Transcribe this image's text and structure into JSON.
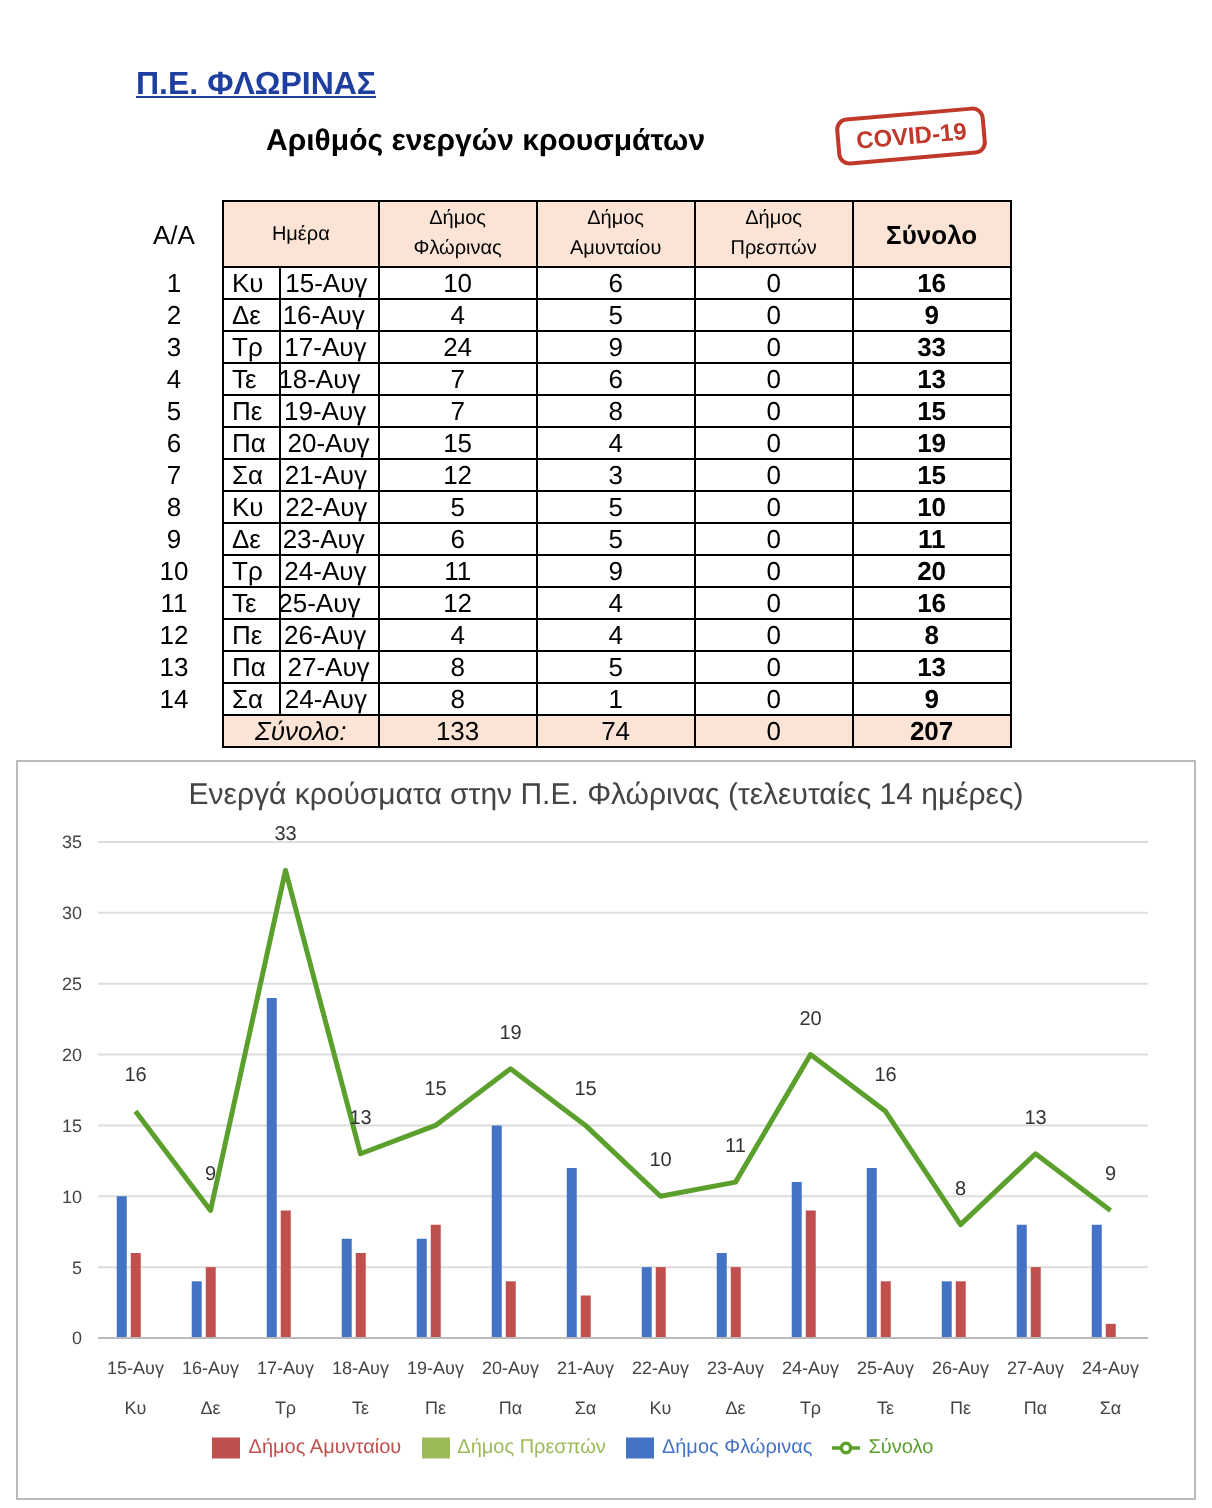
{
  "chart_data": [
    {
      "type": "other",
      "title": "Π.Ε. ΦΛΩΡΙΝΑΣ",
      "subtitle": "Αριθμός ενεργών κρουσμάτων",
      "xlabel": "Ημέρα",
      "annotations": [
        "COVID-19",
        "Σύνολο:"
      ],
      "categories": [
        "Κυ\n15-Αυγ",
        "Δε\n16-Αυγ",
        "Τρ\n17-Αυγ",
        "Τε\n18-Αυγ",
        "Πε\n19-Αυγ",
        "Πα\n20-Αυγ",
        "Σα\n21-Αυγ",
        "Κυ\n22-Αυγ",
        "Δε\n23-Αυγ",
        "Τρ\n24-Αυγ",
        "Τε\n25-Αυγ",
        "Πε\n26-Αυγ",
        "Πα\n27-Αυγ",
        "Σα\n24-Αυγ"
      ],
      "series": [
        {
          "name": "A/A",
          "values": [
            1,
            2,
            3,
            4,
            5,
            6,
            7,
            8,
            9,
            10,
            11,
            12,
            13,
            14
          ]
        },
        {
          "name": "Δήμος Φλώρινας",
          "values": [
            10,
            4,
            24,
            7,
            7,
            15,
            12,
            5,
            6,
            11,
            12,
            4,
            8,
            8
          ]
        },
        {
          "name": "Δήμος Αμυνταίου",
          "values": [
            6,
            5,
            9,
            6,
            8,
            4,
            3,
            5,
            5,
            9,
            4,
            4,
            5,
            1
          ]
        },
        {
          "name": "Δήμος Πρεσπών",
          "values": [
            0,
            0,
            0,
            0,
            0,
            0,
            0,
            0,
            0,
            0,
            0,
            0,
            0,
            0
          ]
        },
        {
          "name": "Σύνολο",
          "values": [
            16,
            9,
            33,
            13,
            15,
            19,
            15,
            10,
            11,
            20,
            16,
            8,
            13,
            9
          ]
        }
      ],
      "totals": [
        "133",
        "74",
        "0",
        "207"
      ],
      "data_labels": true
    },
    {
      "type": "bar",
      "title": "Ενεργά κρούσματα στην Π.Ε. Φλώρινας (τελευταίες 14 ημέρες)",
      "categories": [
        "15-Αυγ\nΚυ",
        "16-Αυγ\nΔε",
        "17-Αυγ\nΤρ",
        "18-Αυγ\nΤε",
        "19-Αυγ\nΠε",
        "20-Αυγ\nΠα",
        "21-Αυγ\nΣα",
        "22-Αυγ\nΚυ",
        "23-Αυγ\nΔε",
        "24-Αυγ\nΤρ",
        "25-Αυγ\nΤε",
        "26-Αυγ\nΠε",
        "27-Αυγ\nΠα",
        "24-Αυγ\nΣα"
      ],
      "series": [
        {
          "name": "Δήμος Φλώρινας",
          "color": "#4472c4",
          "values": [
            10,
            4,
            24,
            7,
            7,
            15,
            12,
            5,
            6,
            11,
            12,
            4,
            8,
            8
          ]
        },
        {
          "name": "Δήμος Αμυνταίου",
          "color": "#c0504d",
          "values": [
            6,
            5,
            9,
            6,
            8,
            4,
            3,
            5,
            5,
            9,
            4,
            4,
            5,
            1
          ]
        },
        {
          "name": "Δήμος Πρεσπών",
          "color": "#9bbb59",
          "values": [
            0,
            0,
            0,
            0,
            0,
            0,
            0,
            0,
            0,
            0,
            0,
            0,
            0,
            0
          ]
        },
        {
          "name": "Σύνολο",
          "type": "line",
          "color": "#5ba02c",
          "values": [
            16,
            9,
            33,
            13,
            15,
            19,
            15,
            10,
            11,
            20,
            16,
            8,
            13,
            9
          ],
          "value_labels": [
            "16",
            "9",
            "33",
            "13",
            "15",
            "19",
            "15",
            "10",
            "11",
            "20",
            "16",
            "8",
            "13",
            "9"
          ]
        }
      ],
      "ylim": [
        0,
        35
      ],
      "yticks": [
        0,
        5,
        10,
        15,
        20,
        25,
        30,
        35
      ],
      "grid": "y",
      "legend": "bottom",
      "marker": "none"
    }
  ]
}
